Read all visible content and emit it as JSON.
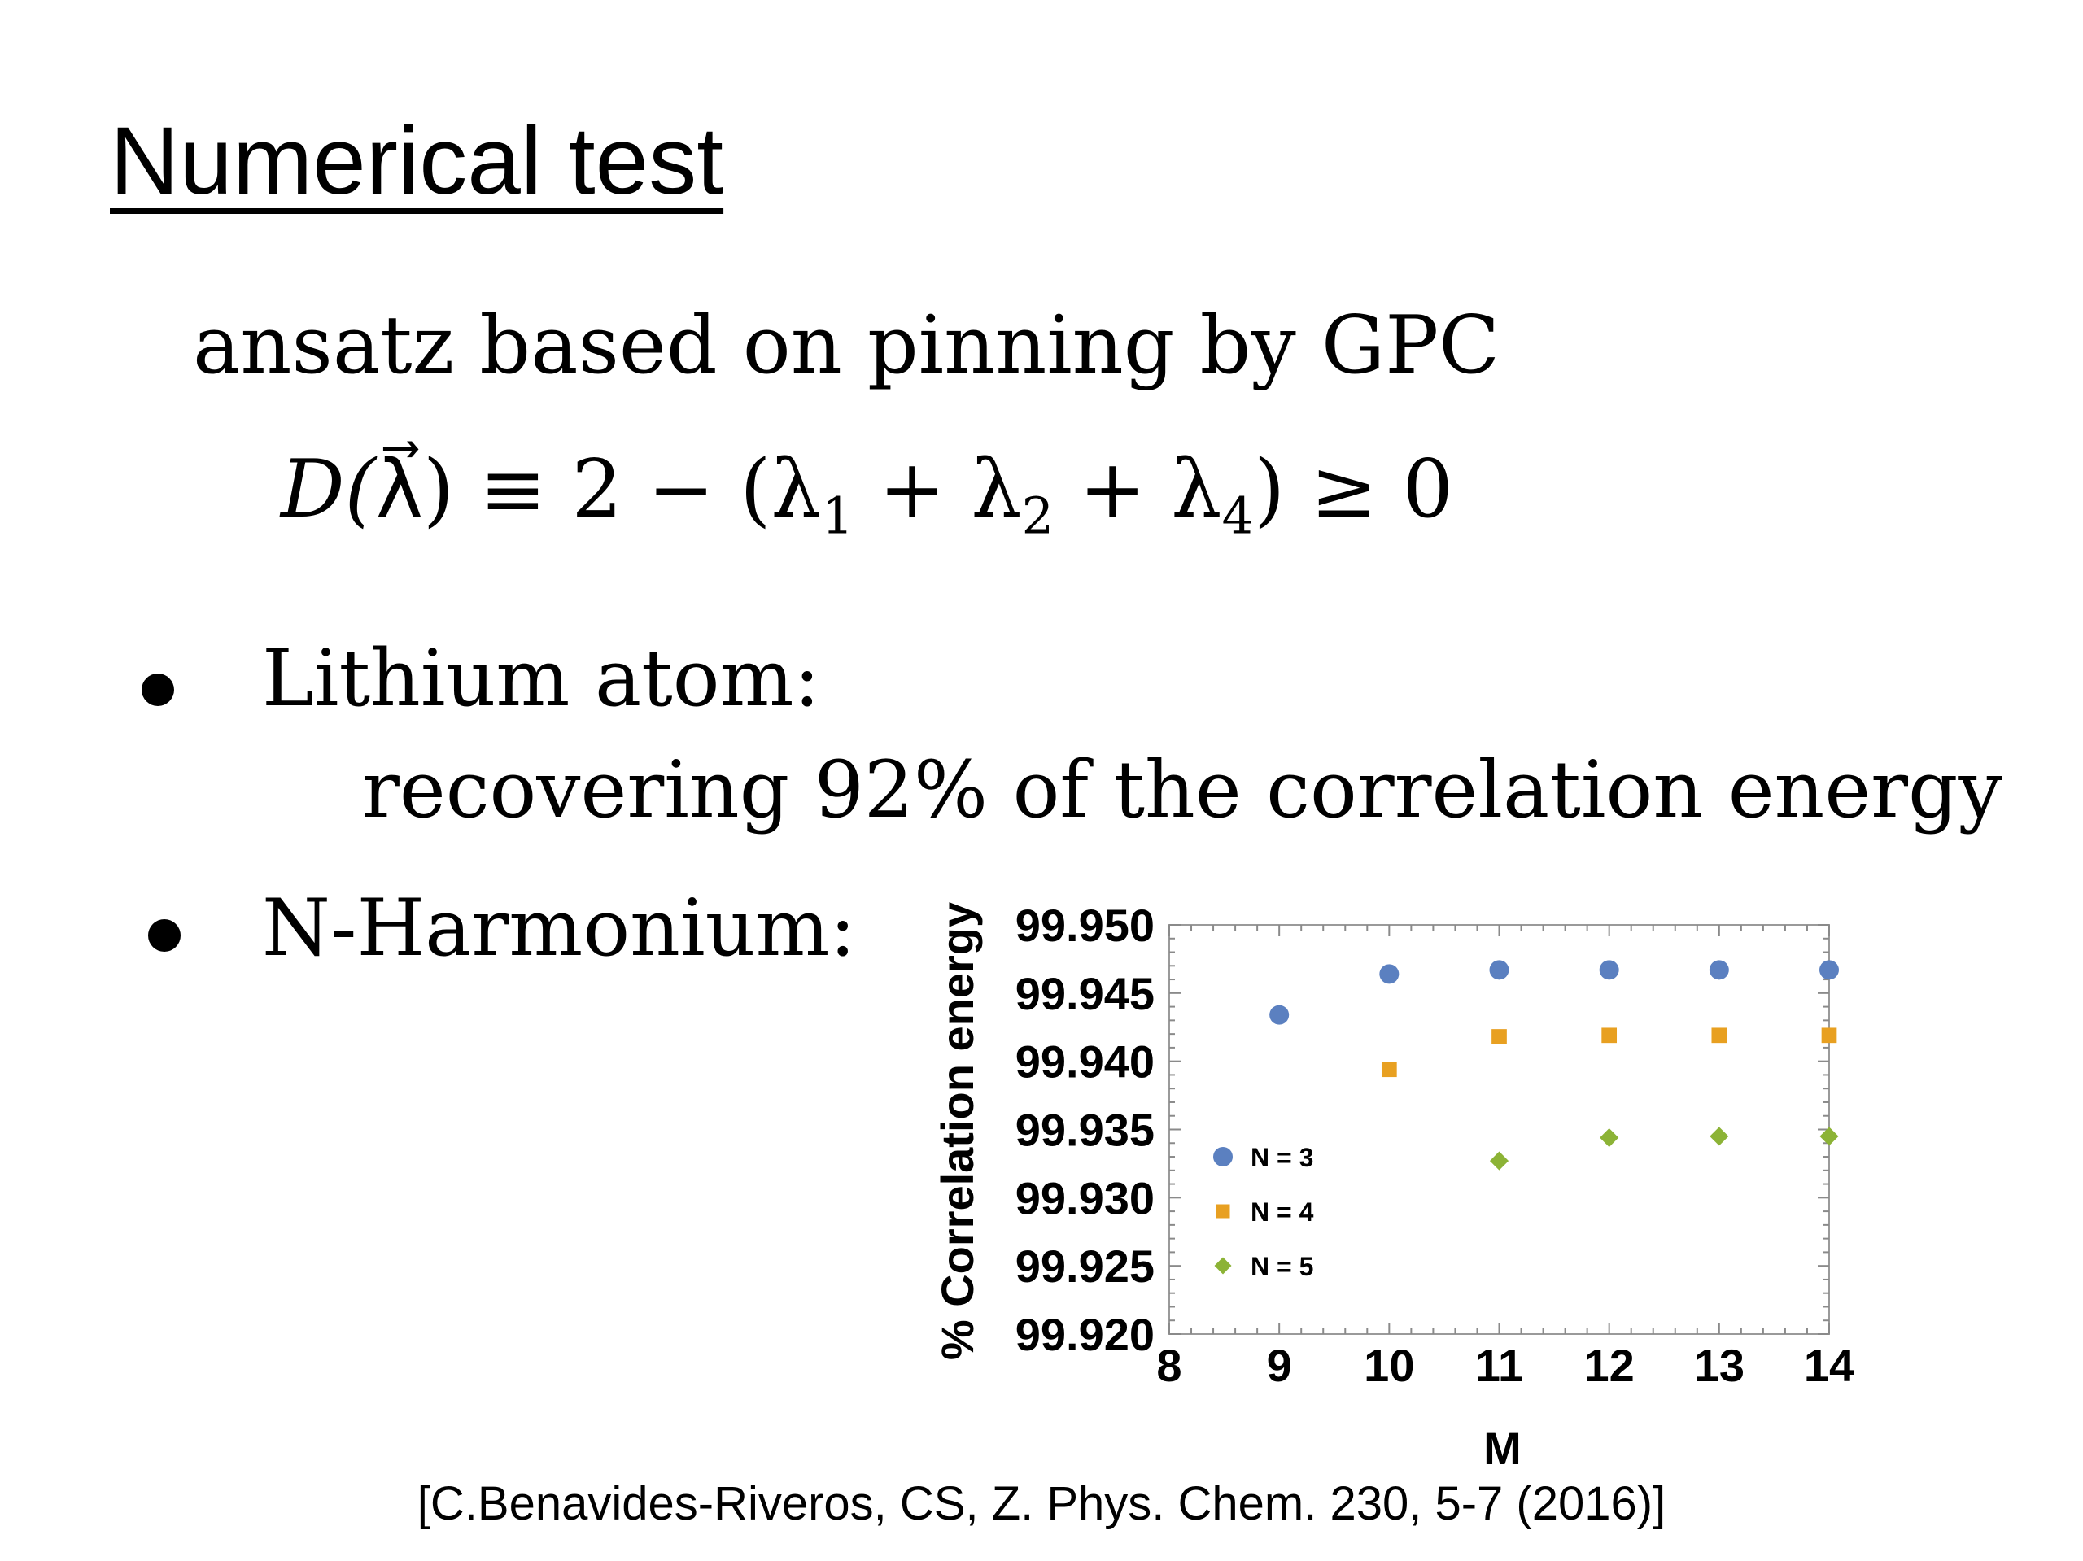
{
  "title": "Numerical test",
  "ansatz_text": "ansatz based on pinning by GPC",
  "formula": {
    "lhs": "D(",
    "lambda_vec": "λ⃗",
    "rhs_open": ") ≡ 2 − (λ",
    "sub1": "1",
    "plus1": " + λ",
    "sub2": "2",
    "plus2": " + λ",
    "sub4": "4",
    "tail": ") ≥ 0"
  },
  "bullets": [
    {
      "label": "Lithium atom:",
      "detail": "recovering 92% of the correlation energy"
    },
    {
      "label": "N-Harmonium:"
    }
  ],
  "citation": "[C.Benavides-Riveros, CS, Z. Phys. Chem. 230, 5-7 (2016)]",
  "chart_data": {
    "type": "scatter",
    "xlabel": "M",
    "ylabel": "% Correlation energy",
    "xlim": [
      8,
      14
    ],
    "ylim": [
      99.92,
      99.95
    ],
    "x_ticks": [
      "8",
      "9",
      "10",
      "11",
      "12",
      "13",
      "14"
    ],
    "y_ticks": [
      "99.920",
      "99.925",
      "99.930",
      "99.935",
      "99.940",
      "99.945",
      "99.950"
    ],
    "legend_position": "left",
    "series": [
      {
        "name": "N = 3",
        "marker": "circle",
        "color": "#5b80c0",
        "points": [
          [
            9,
            99.9434
          ],
          [
            10,
            99.9464
          ],
          [
            11,
            99.9467
          ],
          [
            12,
            99.9467
          ],
          [
            13,
            99.9467
          ],
          [
            14,
            99.9467
          ]
        ]
      },
      {
        "name": "N = 4",
        "marker": "square",
        "color": "#e8a021",
        "points": [
          [
            10,
            99.9394
          ],
          [
            11,
            99.9418
          ],
          [
            12,
            99.9419
          ],
          [
            13,
            99.9419
          ],
          [
            14,
            99.9419
          ]
        ]
      },
      {
        "name": "N = 5",
        "marker": "diamond",
        "color": "#8cb336",
        "points": [
          [
            11,
            99.9327
          ],
          [
            12,
            99.9344
          ],
          [
            13,
            99.9345
          ],
          [
            14,
            99.9345
          ]
        ]
      }
    ]
  }
}
